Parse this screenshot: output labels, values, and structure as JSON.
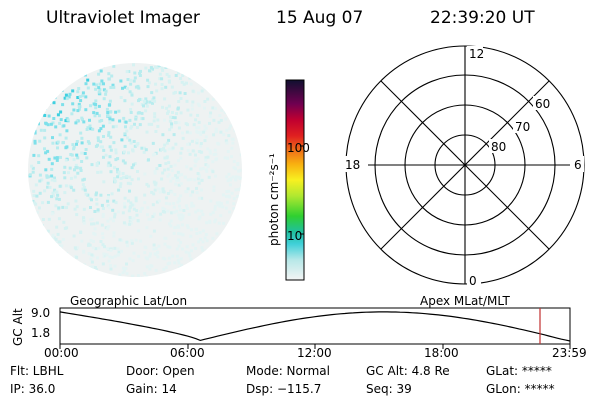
{
  "header": {
    "instrument": "Ultraviolet Imager",
    "date": "15 Aug 07",
    "time": "22:39:20 UT"
  },
  "colorbar": {
    "label": "photon cm⁻²s⁻¹",
    "ticks": [
      "100",
      "10"
    ]
  },
  "polar": {
    "mlt_labels": [
      "12",
      "18",
      "6",
      "0"
    ],
    "lat_labels": [
      "60",
      "70",
      "80"
    ]
  },
  "orbit": {
    "left_label": "Geographic Lat/Lon",
    "right_label": "Apex MLat/MLT",
    "ylabel": "GC Alt",
    "ymax": "9.0",
    "ymin": "1.8",
    "time_ticks": [
      "00:00",
      "06:00",
      "12:00",
      "18:00",
      "23:59"
    ],
    "marker_color": "#c03030"
  },
  "info": {
    "row1": [
      {
        "label": "Flt: LBHL"
      },
      {
        "label": "Door: Open"
      },
      {
        "label": "Mode: Normal"
      },
      {
        "label": "GC Alt: 4.8 Re"
      },
      {
        "label": "GLat: *****"
      }
    ],
    "row2": [
      {
        "label": "IP: 36.0"
      },
      {
        "label": "Gain: 14"
      },
      {
        "label": "Dsp: −115.7"
      },
      {
        "label": "Seq: 39"
      },
      {
        "label": "GLon: *****"
      }
    ]
  }
}
